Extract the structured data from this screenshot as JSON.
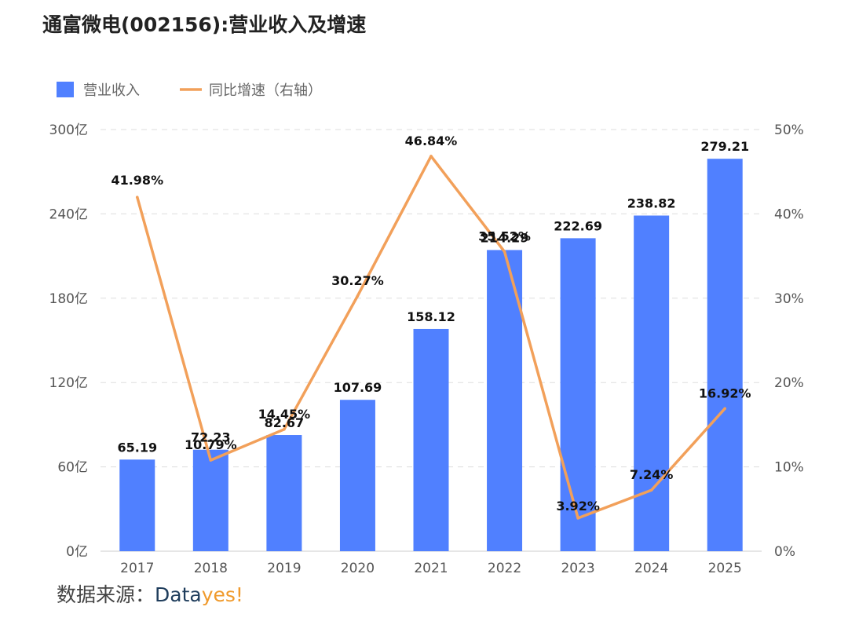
{
  "chart_data": {
    "type": "bar",
    "title": "通富微电(002156):营业收入及增速",
    "categories": [
      "2017",
      "2018",
      "2019",
      "2020",
      "2021",
      "2022",
      "2023",
      "2024",
      "2025"
    ],
    "series": [
      {
        "name": "营业收入",
        "type": "bar",
        "axis": "left",
        "values": [
          65.19,
          72.23,
          82.67,
          107.69,
          158.12,
          214.29,
          222.69,
          238.82,
          279.21
        ],
        "labels": [
          "65.19",
          "72.23",
          "82.67",
          "107.69",
          "158.12",
          "214.29",
          "222.69",
          "238.82",
          "279.21"
        ]
      },
      {
        "name": "同比增速（右轴）",
        "type": "line",
        "axis": "right",
        "values": [
          41.98,
          10.79,
          14.45,
          30.27,
          46.84,
          35.52,
          3.92,
          7.24,
          16.92
        ],
        "labels": [
          "41.98%",
          "10.79%",
          "14.45%",
          "30.27%",
          "46.84%",
          "35.52%",
          "3.92%",
          "7.24%",
          "16.92%"
        ]
      }
    ],
    "y_left": {
      "range": [
        0,
        300
      ],
      "ticks": [
        0,
        60,
        120,
        180,
        240,
        300
      ],
      "tick_labels": [
        "0亿",
        "60亿",
        "120亿",
        "180亿",
        "240亿",
        "300亿"
      ]
    },
    "y_right": {
      "range": [
        0,
        50
      ],
      "ticks": [
        0,
        10,
        20,
        30,
        40,
        50
      ],
      "tick_labels": [
        "0%",
        "10%",
        "20%",
        "30%",
        "40%",
        "50%"
      ]
    },
    "legend_position": "top-left",
    "grid": true
  },
  "colors": {
    "bar": "#5080ff",
    "line": "#f2a05a",
    "grid": "#dddddd"
  },
  "source": {
    "label": "数据来源：",
    "brand_a": "Data",
    "brand_b": "yes!"
  }
}
